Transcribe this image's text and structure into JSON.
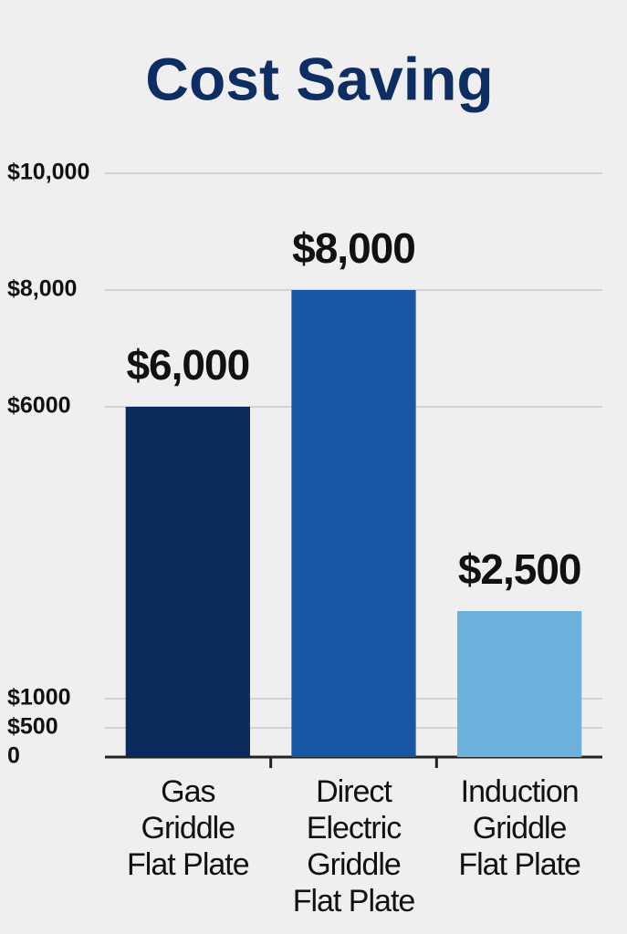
{
  "chart_data": {
    "type": "bar",
    "title": "Cost Saving",
    "categories": [
      "Gas\nGriddle\nFlat Plate",
      "Direct\nElectric\nGriddle\nFlat Plate",
      "Induction\nGriddle\nFlat Plate"
    ],
    "values": [
      6000,
      8000,
      2500
    ],
    "value_labels": [
      "$6,000",
      "$8,000",
      "$2,500"
    ],
    "colors": [
      "#0b2a5c",
      "#1656a3",
      "#6ab2dc"
    ],
    "ylim": [
      0,
      10000
    ],
    "yticks": [
      0,
      {
        "value": 500,
        "label": "$500"
      },
      {
        "value": 1000,
        "label": "$1000"
      },
      {
        "value": 6000,
        "label": "$6000"
      },
      {
        "value": 8000,
        "label": "$8,000"
      },
      {
        "value": 10000,
        "label": "$10,000"
      }
    ],
    "grid": true
  }
}
